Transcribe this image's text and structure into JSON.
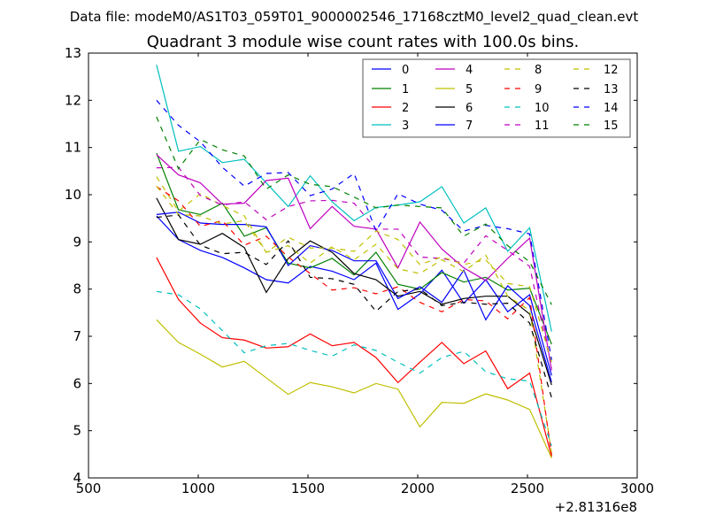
{
  "figure": {
    "suptitle": "Data file: modeM0/AS1T03_059T01_9000002546_17168cztM0_level2_quad_clean.evt",
    "title": "Quadrant 3 module wise count rates with 100.0s bins.",
    "x_offset_label": "+2.81316e8"
  },
  "chart_data": {
    "type": "line",
    "title": "Quadrant 3 module wise count rates with 100.0s bins.",
    "xlabel": "",
    "ylabel": "",
    "xlim": [
      500,
      3000
    ],
    "ylim": [
      4,
      13
    ],
    "x_ticks": [
      500,
      1000,
      1500,
      2000,
      2500,
      3000
    ],
    "y_ticks": [
      4,
      5,
      6,
      7,
      8,
      9,
      10,
      11,
      12,
      13
    ],
    "x_offset": "+2.81316e8",
    "grid": false,
    "legend_position": "top-right",
    "legend_columns": 4,
    "x": [
      810,
      910,
      1010,
      1110,
      1210,
      1310,
      1410,
      1510,
      1610,
      1710,
      1810,
      1910,
      2010,
      2110,
      2210,
      2310,
      2410,
      2510,
      2610
    ],
    "series": [
      {
        "name": "0",
        "color": "#0000ff",
        "dash": "solid",
        "values": [
          9.55,
          9.05,
          8.82,
          8.67,
          8.45,
          8.2,
          8.13,
          8.48,
          8.38,
          8.2,
          8.55,
          7.57,
          7.9,
          8.4,
          7.7,
          8.2,
          7.52,
          7.88,
          6.17
        ]
      },
      {
        "name": "1",
        "color": "#008000",
        "dash": "solid",
        "values": [
          10.88,
          9.68,
          9.58,
          9.82,
          9.12,
          9.3,
          8.55,
          8.45,
          8.65,
          8.3,
          8.78,
          8.1,
          8.0,
          8.35,
          8.15,
          8.25,
          7.98,
          8.02,
          6.83
        ]
      },
      {
        "name": "2",
        "color": "#ff0000",
        "dash": "solid",
        "values": [
          8.67,
          7.78,
          7.28,
          6.97,
          6.92,
          6.75,
          6.78,
          7.05,
          6.8,
          6.87,
          6.55,
          6.02,
          6.45,
          6.87,
          6.42,
          6.69,
          5.89,
          6.22,
          4.45
        ]
      },
      {
        "name": "3",
        "color": "#00bfbf",
        "dash": "solid",
        "values": [
          12.75,
          10.92,
          11.02,
          10.68,
          10.75,
          10.25,
          9.75,
          10.4,
          9.85,
          9.45,
          9.73,
          9.78,
          9.85,
          10.17,
          9.4,
          9.72,
          8.8,
          9.3,
          7.1
        ]
      },
      {
        "name": "4",
        "color": "#bf00bf",
        "dash": "solid",
        "values": [
          10.85,
          10.42,
          10.25,
          9.8,
          9.82,
          10.3,
          10.35,
          9.28,
          9.75,
          9.33,
          9.27,
          8.45,
          9.42,
          8.85,
          8.45,
          8.18,
          8.65,
          9.08,
          6.28
        ]
      },
      {
        "name": "5",
        "color": "#bfbf00",
        "dash": "solid",
        "values": [
          7.35,
          6.87,
          6.62,
          6.35,
          6.47,
          6.12,
          5.77,
          6.02,
          5.93,
          5.8,
          6.0,
          5.88,
          5.08,
          5.6,
          5.58,
          5.78,
          5.65,
          5.45,
          4.42
        ]
      },
      {
        "name": "6",
        "color": "#000000",
        "dash": "solid",
        "values": [
          9.93,
          9.05,
          8.95,
          9.18,
          8.88,
          7.93,
          8.65,
          9.02,
          8.78,
          8.33,
          8.2,
          7.85,
          7.95,
          7.68,
          7.8,
          7.85,
          7.85,
          7.47,
          5.97
        ]
      },
      {
        "name": "7",
        "color": "#0000ff",
        "dash": "solid",
        "values": [
          9.58,
          9.63,
          9.4,
          9.37,
          9.37,
          9.32,
          8.5,
          8.92,
          8.82,
          8.6,
          8.6,
          7.8,
          8.05,
          7.72,
          8.4,
          7.35,
          8.07,
          7.65,
          6.03
        ]
      },
      {
        "name": "8",
        "color": "#bfbf00",
        "dash": "dashed",
        "values": [
          10.38,
          9.65,
          10.02,
          9.77,
          9.55,
          8.78,
          8.92,
          8.55,
          8.9,
          8.62,
          8.95,
          8.43,
          8.33,
          8.62,
          8.37,
          8.72,
          7.85,
          7.55,
          4.53
        ]
      },
      {
        "name": "9",
        "color": "#ff0000",
        "dash": "dashed",
        "values": [
          10.17,
          9.87,
          9.33,
          9.45,
          8.93,
          9.12,
          8.68,
          8.33,
          7.98,
          8.03,
          7.9,
          8.05,
          7.72,
          7.52,
          7.78,
          7.75,
          7.37,
          7.82,
          4.47
        ]
      },
      {
        "name": "10",
        "color": "#00bfbf",
        "dash": "dashed",
        "values": [
          7.95,
          7.88,
          7.58,
          7.12,
          6.65,
          6.8,
          6.85,
          6.7,
          6.58,
          6.82,
          6.7,
          6.45,
          6.22,
          6.55,
          6.68,
          6.25,
          6.1,
          6.05,
          4.68
        ]
      },
      {
        "name": "11",
        "color": "#bf00bf",
        "dash": "dashed",
        "values": [
          10.57,
          10.58,
          9.98,
          9.78,
          9.85,
          9.47,
          9.75,
          9.87,
          9.88,
          9.82,
          9.27,
          9.27,
          8.68,
          8.65,
          8.55,
          9.13,
          8.82,
          8.48,
          6.33
        ]
      },
      {
        "name": "12",
        "color": "#bfbf00",
        "dash": "dashed",
        "values": [
          10.18,
          9.58,
          9.55,
          9.38,
          9.45,
          8.78,
          9.1,
          8.87,
          8.87,
          8.8,
          9.23,
          9.05,
          8.52,
          8.68,
          8.52,
          8.62,
          8.12,
          8.05,
          6.45
        ]
      },
      {
        "name": "13",
        "color": "#000000",
        "dash": "dashed",
        "values": [
          9.52,
          9.57,
          8.93,
          8.75,
          8.78,
          8.52,
          9.02,
          8.25,
          8.22,
          8.1,
          7.53,
          7.95,
          8.0,
          7.65,
          7.72,
          7.68,
          7.7,
          7.28,
          5.7
        ]
      },
      {
        "name": "14",
        "color": "#0000ff",
        "dash": "dashed",
        "values": [
          12.0,
          11.47,
          11.12,
          10.58,
          10.18,
          10.45,
          10.47,
          9.98,
          10.12,
          10.45,
          9.23,
          10.02,
          9.8,
          9.67,
          9.23,
          9.35,
          9.28,
          9.17,
          6.5
        ]
      },
      {
        "name": "15",
        "color": "#008000",
        "dash": "dashed",
        "values": [
          11.65,
          10.55,
          11.17,
          10.95,
          10.82,
          10.12,
          10.42,
          10.22,
          10.17,
          9.95,
          9.72,
          9.78,
          9.75,
          9.72,
          9.12,
          9.38,
          8.92,
          8.58,
          7.67
        ]
      }
    ]
  }
}
